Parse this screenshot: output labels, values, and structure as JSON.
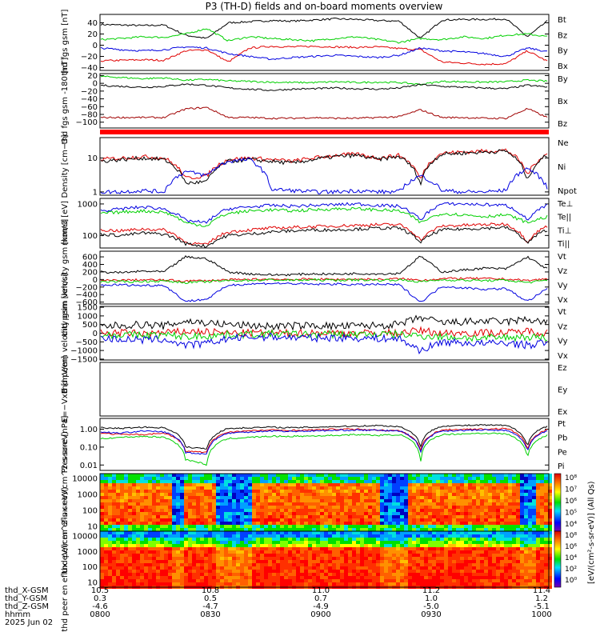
{
  "title": "P3 (TH-D) fields and on-board moments overview",
  "colors": {
    "black": "#000000",
    "red": "#e00000",
    "green": "#00d000",
    "blue": "#0000e0",
    "darkred": "#a00000",
    "barred": "#ff0000"
  },
  "chart_data": [
    {
      "type": "line",
      "ylabel": "thd fgs gsm [nT]",
      "ylim": [
        -45,
        55
      ],
      "yticks": [
        {
          "v": 40,
          "label": "40"
        },
        {
          "v": 20,
          "label": "20"
        },
        {
          "v": 0,
          "label": "0"
        },
        {
          "v": -20,
          "label": "−20"
        },
        {
          "v": -40,
          "label": "−40"
        }
      ],
      "series": [
        {
          "name": "Bt",
          "color": "#000000",
          "values": [
            37,
            36,
            35,
            36,
            18,
            12,
            40,
            42,
            44,
            43,
            45,
            47,
            46,
            44,
            43,
            12,
            45,
            46,
            46,
            47,
            15,
            45
          ]
        },
        {
          "name": "Bz",
          "color": "#e00000",
          "values": [
            -28,
            -27,
            -26,
            -27,
            -10,
            -8,
            -30,
            -5,
            -2,
            -3,
            -2,
            -3,
            -4,
            -3,
            -6,
            -8,
            -30,
            -32,
            -34,
            -33,
            -10,
            -30
          ]
        },
        {
          "name": "By",
          "color": "#00d000",
          "values": [
            10,
            12,
            15,
            14,
            20,
            30,
            8,
            15,
            12,
            10,
            8,
            12,
            15,
            10,
            5,
            12,
            10,
            15,
            12,
            18,
            20,
            15
          ]
        },
        {
          "name": "Bx",
          "color": "#0000e0",
          "values": [
            -5,
            -8,
            -10,
            -8,
            -3,
            -5,
            -15,
            -20,
            -25,
            -22,
            -20,
            -18,
            -20,
            -22,
            -18,
            -5,
            -10,
            -12,
            -15,
            -20,
            -5,
            -12
          ]
        }
      ]
    },
    {
      "type": "line",
      "ylabel": "thd fgs gsm -180 [nT]",
      "ylim": [
        -115,
        25
      ],
      "yticks": [
        {
          "v": 20,
          "label": "20"
        },
        {
          "v": 0,
          "label": "0"
        },
        {
          "v": -20,
          "label": "−20"
        },
        {
          "v": -40,
          "label": "−40"
        },
        {
          "v": -60,
          "label": "−60"
        },
        {
          "v": -80,
          "label": "−80"
        },
        {
          "v": -100,
          "label": "−100"
        }
      ],
      "series": [
        {
          "name": "By",
          "color": "#00d000",
          "values": [
            18,
            15,
            12,
            14,
            8,
            10,
            6,
            5,
            3,
            2,
            2,
            4,
            2,
            3,
            2,
            -3,
            5,
            4,
            3,
            4,
            8,
            5
          ]
        },
        {
          "name": "Bx",
          "color": "#000000",
          "values": [
            -5,
            -8,
            -10,
            -8,
            -2,
            -5,
            -12,
            -15,
            -18,
            -15,
            -14,
            -12,
            -14,
            -15,
            -12,
            -3,
            -8,
            -10,
            -12,
            -14,
            -5,
            -10
          ]
        },
        {
          "name": "Bz",
          "color": "#a00000",
          "values": [
            -88,
            -88,
            -88,
            -88,
            -66,
            -62,
            -88,
            -88,
            -90,
            -90,
            -88,
            -90,
            -90,
            -88,
            -86,
            -68,
            -88,
            -88,
            -90,
            -90,
            -65,
            -90
          ]
        }
      ]
    },
    {
      "type": "bar",
      "ylabel": "",
      "series": [
        {
          "name": "",
          "color": "#ff0000",
          "values": [
            1
          ]
        }
      ]
    },
    {
      "type": "line",
      "ylabel": "Density [cm−3]",
      "yscale": "log",
      "ylim": [
        0.8,
        40
      ],
      "yticks": [
        {
          "v": 10,
          "label": "10"
        },
        {
          "v": 1,
          "label": "1"
        }
      ],
      "series": [
        {
          "name": "Ne",
          "color": "#e00000",
          "values": [
            9,
            10,
            11,
            10,
            2.5,
            3,
            9,
            10,
            9,
            8,
            10,
            12,
            13,
            10,
            12,
            2.2,
            14,
            15,
            16,
            17,
            3,
            14
          ]
        },
        {
          "name": "Ni",
          "color": "#000000",
          "values": [
            8,
            9,
            10,
            9,
            1.8,
            2,
            8,
            9,
            8,
            7,
            9,
            11,
            12,
            9,
            11,
            1.6,
            13,
            14,
            15,
            16,
            2,
            13
          ]
        },
        {
          "name": "Npot",
          "color": "#0000e0",
          "values": [
            1,
            1,
            1.1,
            1,
            4,
            3,
            8,
            9,
            1.2,
            1.1,
            1,
            1,
            1.1,
            1,
            1,
            3,
            1.1,
            1,
            1,
            1.1,
            5,
            1
          ]
        }
      ]
    },
    {
      "type": "line",
      "ylabel": "mom3 [eV]",
      "yscale": "log",
      "ylim": [
        40,
        1500
      ],
      "yticks": [
        {
          "v": 1000,
          "label": "1000"
        },
        {
          "v": 100,
          "label": "100"
        }
      ],
      "series": [
        {
          "name": "Te⊥",
          "color": "#e00000",
          "values": [
            150,
            140,
            160,
            150,
            60,
            50,
            130,
            150,
            170,
            180,
            190,
            200,
            210,
            220,
            220,
            70,
            200,
            210,
            220,
            230,
            60,
            210
          ]
        },
        {
          "name": "Te||",
          "color": "#000000",
          "values": [
            110,
            100,
            120,
            110,
            55,
            45,
            100,
            110,
            130,
            140,
            150,
            150,
            160,
            170,
            170,
            60,
            150,
            160,
            170,
            180,
            55,
            160
          ]
        },
        {
          "name": "Ti⊥",
          "color": "#0000e0",
          "values": [
            600,
            700,
            800,
            700,
            300,
            250,
            700,
            800,
            900,
            850,
            900,
            950,
            1000,
            900,
            850,
            300,
            1000,
            1000,
            950,
            900,
            300,
            950
          ]
        },
        {
          "name": "Ti||",
          "color": "#00d000",
          "values": [
            500,
            550,
            600,
            550,
            250,
            200,
            500,
            600,
            650,
            600,
            650,
            700,
            700,
            650,
            600,
            250,
            500,
            450,
            400,
            450,
            250,
            400
          ]
        }
      ]
    },
    {
      "type": "line",
      "ylabel": "thd peim velocity gsm [km/s]",
      "ylim": [
        -650,
        750
      ],
      "yticks": [
        {
          "v": 600,
          "label": "600"
        },
        {
          "v": 400,
          "label": "400"
        },
        {
          "v": 200,
          "label": "200"
        },
        {
          "v": 0,
          "label": "0"
        },
        {
          "v": -200,
          "label": "−200"
        },
        {
          "v": -400,
          "label": "−400"
        },
        {
          "v": -600,
          "label": "−600"
        }
      ],
      "series": [
        {
          "name": "Vt",
          "color": "#000000",
          "values": [
            200,
            180,
            220,
            200,
            600,
            550,
            200,
            150,
            120,
            130,
            150,
            140,
            160,
            150,
            160,
            620,
            200,
            250,
            300,
            280,
            600,
            250
          ]
        },
        {
          "name": "Vz",
          "color": "#e00000",
          "values": [
            -30,
            -20,
            -10,
            -20,
            -40,
            -30,
            -10,
            0,
            10,
            0,
            10,
            0,
            10,
            0,
            20,
            -20,
            20,
            30,
            20,
            10,
            -30,
            20
          ]
        },
        {
          "name": "Vy",
          "color": "#00d000",
          "values": [
            -50,
            -60,
            -50,
            -40,
            -80,
            -60,
            -30,
            -20,
            -10,
            -20,
            -10,
            -20,
            -10,
            -20,
            -10,
            -60,
            -10,
            -20,
            -30,
            -20,
            -80,
            -20
          ]
        },
        {
          "name": "Vx",
          "color": "#0000e0",
          "values": [
            -150,
            -140,
            -160,
            -150,
            -580,
            -520,
            -150,
            -120,
            -100,
            -110,
            -130,
            -120,
            -140,
            -130,
            -140,
            -600,
            -180,
            -220,
            -260,
            -240,
            -580,
            -220
          ]
        }
      ]
    },
    {
      "type": "line",
      "ylabel": "thd peem velocity gsm [km/s]",
      "ylim": [
        -1550,
        1550
      ],
      "yticks": [
        {
          "v": 1500,
          "label": "1500"
        },
        {
          "v": 1000,
          "label": "1000"
        },
        {
          "v": 500,
          "label": "500"
        },
        {
          "v": 0,
          "label": "0"
        },
        {
          "v": -500,
          "label": "−500"
        },
        {
          "v": -1000,
          "label": "−1000"
        },
        {
          "v": -1500,
          "label": "−1500"
        }
      ],
      "series": [
        {
          "name": "Vt",
          "color": "#000000",
          "values": [
            400,
            450,
            500,
            420,
            700,
            600,
            500,
            450,
            400,
            420,
            450,
            400,
            420,
            450,
            500,
            900,
            600,
            650,
            700,
            650,
            800,
            600
          ]
        },
        {
          "name": "Vz",
          "color": "#e00000",
          "values": [
            0,
            20,
            -20,
            10,
            100,
            80,
            0,
            10,
            0,
            -10,
            20,
            10,
            0,
            10,
            20,
            150,
            0,
            20,
            30,
            10,
            120,
            20
          ]
        },
        {
          "name": "Vy",
          "color": "#00d000",
          "values": [
            -100,
            -80,
            -120,
            -100,
            -200,
            -150,
            -80,
            -60,
            -50,
            -60,
            -80,
            -60,
            -70,
            -60,
            -80,
            -150,
            -200,
            -250,
            -300,
            -250,
            -200,
            -250
          ]
        },
        {
          "name": "Vx",
          "color": "#0000e0",
          "values": [
            -300,
            -350,
            -400,
            -350,
            -700,
            -600,
            -300,
            -250,
            -200,
            -250,
            -280,
            -260,
            -280,
            -300,
            -320,
            -1000,
            -500,
            -550,
            -600,
            -550,
            -700,
            -500
          ]
        }
      ]
    },
    {
      "type": "line",
      "ylabel": "E=−VxB [mV/m]",
      "series": [
        {
          "name": "Ez",
          "color": "#e00000",
          "values": []
        },
        {
          "name": "Ey",
          "color": "#00d000",
          "values": []
        },
        {
          "name": "Ex",
          "color": "#0000e0",
          "values": []
        }
      ]
    },
    {
      "type": "line",
      "ylabel": "Pressure [nPa]",
      "yscale": "log",
      "ylim": [
        0.005,
        4
      ],
      "yticks": [
        {
          "v": 1,
          "label": "1.00"
        },
        {
          "v": 0.1,
          "label": "0.10"
        },
        {
          "v": 0.01,
          "label": "0.01"
        }
      ],
      "series": [
        {
          "name": "Pt",
          "color": "#000000",
          "values": [
            1.2,
            1.1,
            1.3,
            1.2,
            0.1,
            0.08,
            1.1,
            1.2,
            1.3,
            1.2,
            1.3,
            1.4,
            1.5,
            1.6,
            1.4,
            0.1,
            1.5,
            1.6,
            1.7,
            1.6,
            0.1,
            1.6
          ]
        },
        {
          "name": "Pb",
          "color": "#e00000",
          "values": [
            0.6,
            0.5,
            0.5,
            0.6,
            0.06,
            0.05,
            0.7,
            0.8,
            0.9,
            0.85,
            0.9,
            1.0,
            1.0,
            0.9,
            0.8,
            0.06,
            0.9,
            1.0,
            1.0,
            1.1,
            0.06,
            1.0
          ]
        },
        {
          "name": "Pe",
          "color": "#00d000",
          "values": [
            0.3,
            0.35,
            0.4,
            0.35,
            0.02,
            0.01,
            0.3,
            0.35,
            0.4,
            0.4,
            0.42,
            0.45,
            0.5,
            0.45,
            0.5,
            0.01,
            0.5,
            0.55,
            0.6,
            0.55,
            0.02,
            0.5
          ]
        },
        {
          "name": "Pi",
          "color": "#0000e0",
          "values": [
            0.7,
            0.6,
            0.8,
            0.7,
            0.05,
            0.04,
            0.6,
            0.7,
            0.8,
            0.75,
            0.8,
            0.85,
            0.9,
            0.85,
            0.8,
            0.04,
            0.8,
            0.85,
            0.9,
            0.85,
            0.05,
            0.85
          ]
        }
      ]
    },
    {
      "type": "heatmap",
      "ylabel": "thd peir en eflux eV/(cm^2-s-sr-eV)",
      "yscale": "log",
      "ylim": [
        5,
        20000
      ],
      "yticks": [
        {
          "v": 10000,
          "label": "10000"
        },
        {
          "v": 1000,
          "label": "1000"
        },
        {
          "v": 100,
          "label": "100"
        },
        {
          "v": 10,
          "label": "10"
        }
      ],
      "colorbar_ticks": [
        "10⁸",
        "10⁷",
        "10⁶",
        "10⁵",
        "10⁴"
      ]
    },
    {
      "type": "heatmap",
      "ylabel": "thd peer en eflux eV/(cm^2-s-sr-eV)",
      "yscale": "log",
      "ylim": [
        5,
        20000
      ],
      "yticks": [
        {
          "v": 10000,
          "label": "10000"
        },
        {
          "v": 1000,
          "label": "1000"
        },
        {
          "v": 100,
          "label": "100"
        },
        {
          "v": 10,
          "label": "10"
        }
      ],
      "colorbar_ticks": [
        "10⁸",
        "10⁶",
        "10⁴",
        "10²",
        "10⁰"
      ],
      "colorbar_label": "[eV/(cm²-s-sr-eV)] (All Qs)"
    }
  ],
  "xaxis": {
    "rows": [
      {
        "label": "thd_X-GSM",
        "values": [
          "10.5",
          "10.8",
          "11.0",
          "11.2",
          "11.4"
        ]
      },
      {
        "label": "thd_Y-GSM",
        "values": [
          "0.3",
          "0.5",
          "0.7",
          "1.0",
          "1.2"
        ]
      },
      {
        "label": "thd_Z-GSM",
        "values": [
          "-4.6",
          "-4.7",
          "-4.9",
          "-5.0",
          "-5.1"
        ]
      },
      {
        "label": "hhmm",
        "values": [
          "0800",
          "0830",
          "0900",
          "0930",
          "1000"
        ]
      }
    ],
    "date": "2025 Jun 02"
  }
}
